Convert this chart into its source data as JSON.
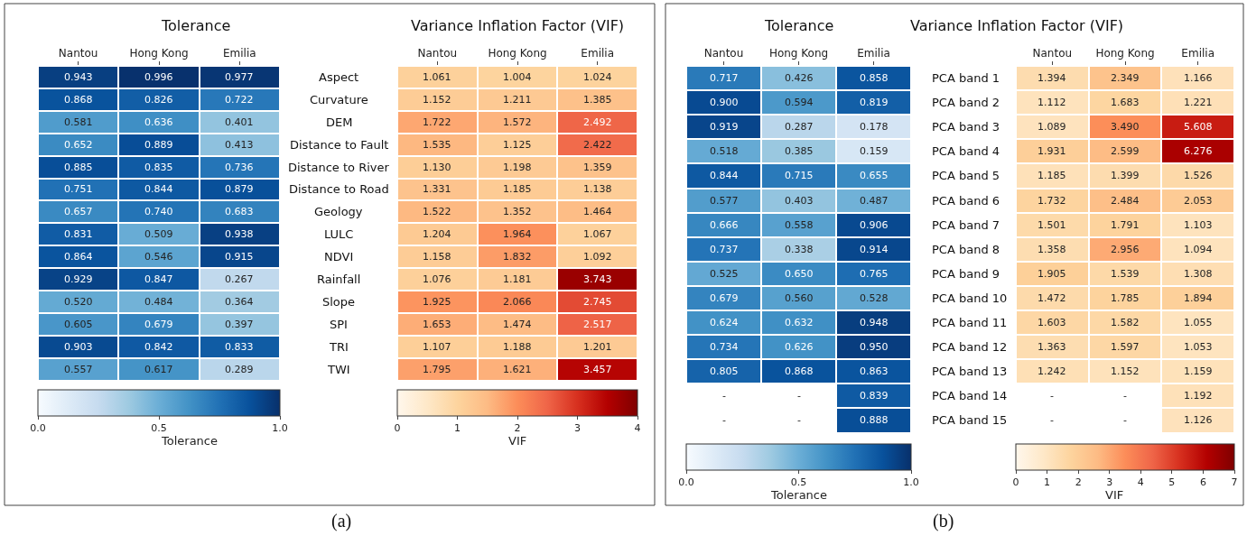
{
  "chart_data": [
    {
      "type": "heatmap",
      "title": "Tolerance",
      "clabel": "Tolerance",
      "categories": [
        "Nantou",
        "Hong Kong",
        "Emilia"
      ],
      "y_categories": [
        null,
        null,
        null,
        null,
        null,
        null,
        null,
        null,
        null,
        null,
        null,
        null,
        null,
        null
      ],
      "cells": [
        [
          0.943,
          0.996,
          0.977
        ],
        [
          0.868,
          0.826,
          0.722
        ],
        [
          0.581,
          0.636,
          0.401
        ],
        [
          0.652,
          0.889,
          0.413
        ],
        [
          0.885,
          0.835,
          0.736
        ],
        [
          0.751,
          0.844,
          0.879
        ],
        [
          0.657,
          0.74,
          0.683
        ],
        [
          0.831,
          0.509,
          0.938
        ],
        [
          0.864,
          0.546,
          0.915
        ],
        [
          0.929,
          0.847,
          0.267
        ],
        [
          0.52,
          0.484,
          0.364
        ],
        [
          0.605,
          0.679,
          0.397
        ],
        [
          0.903,
          0.842,
          0.833
        ],
        [
          0.557,
          0.617,
          0.289
        ]
      ],
      "cell_labels": [
        [
          "0.943",
          "0.996",
          "0.977"
        ],
        [
          "0.868",
          "0.826",
          "0.722"
        ],
        [
          "0.581",
          "0.636",
          "0.401"
        ],
        [
          "0.652",
          "0.889",
          "0.413"
        ],
        [
          "0.885",
          "0.835",
          "0.736"
        ],
        [
          "0.751",
          "0.844",
          "0.879"
        ],
        [
          "0.657",
          "0.740",
          "0.683"
        ],
        [
          "0.831",
          "0.509",
          "0.938"
        ],
        [
          "0.864",
          "0.546",
          "0.915"
        ],
        [
          "0.929",
          "0.847",
          "0.267"
        ],
        [
          "0.520",
          "0.484",
          "0.364"
        ],
        [
          "0.605",
          "0.679",
          "0.397"
        ],
        [
          "0.903",
          "0.842",
          "0.833"
        ],
        [
          "0.557",
          "0.617",
          "0.289"
        ]
      ],
      "clim": [
        0,
        1
      ],
      "cticks": [
        {
          "value": 0,
          "label": "0.0"
        },
        {
          "value": 0.5,
          "label": "0.5"
        },
        {
          "value": 1,
          "label": "1.0"
        }
      ],
      "tick_labels": "x",
      "annotations": [
        "(a)"
      ]
    },
    {
      "type": "heatmap",
      "title": "Variance Inflation Factor (VIF)",
      "clabel": "VIF",
      "categories": [
        "Nantou",
        "Hong Kong",
        "Emilia"
      ],
      "y_categories": [
        "Aspect",
        "Curvature",
        "DEM",
        "Distance to Fault",
        "Distance to River",
        "Distance to Road",
        "Geology",
        "LULC",
        "NDVI",
        "Rainfall",
        "Slope",
        "SPI",
        "TRI",
        "TWI"
      ],
      "cells": [
        [
          1.061,
          1.004,
          1.024
        ],
        [
          1.152,
          1.211,
          1.385
        ],
        [
          1.722,
          1.572,
          2.492
        ],
        [
          1.535,
          1.125,
          2.422
        ],
        [
          1.13,
          1.198,
          1.359
        ],
        [
          1.331,
          1.185,
          1.138
        ],
        [
          1.522,
          1.352,
          1.464
        ],
        [
          1.204,
          1.964,
          1.067
        ],
        [
          1.158,
          1.832,
          1.092
        ],
        [
          1.076,
          1.181,
          3.743
        ],
        [
          1.925,
          2.066,
          2.745
        ],
        [
          1.653,
          1.474,
          2.517
        ],
        [
          1.107,
          1.188,
          1.201
        ],
        [
          1.795,
          1.621,
          3.457
        ]
      ],
      "cell_labels": [
        [
          "1.061",
          "1.004",
          "1.024"
        ],
        [
          "1.152",
          "1.211",
          "1.385"
        ],
        [
          "1.722",
          "1.572",
          "2.492"
        ],
        [
          "1.535",
          "1.125",
          "2.422"
        ],
        [
          "1.130",
          "1.198",
          "1.359"
        ],
        [
          "1.331",
          "1.185",
          "1.138"
        ],
        [
          "1.522",
          "1.352",
          "1.464"
        ],
        [
          "1.204",
          "1.964",
          "1.067"
        ],
        [
          "1.158",
          "1.832",
          "1.092"
        ],
        [
          "1.076",
          "1.181",
          "3.743"
        ],
        [
          "1.925",
          "2.066",
          "2.745"
        ],
        [
          "1.653",
          "1.474",
          "2.517"
        ],
        [
          "1.107",
          "1.188",
          "1.201"
        ],
        [
          "1.795",
          "1.621",
          "3.457"
        ]
      ],
      "clim": [
        0,
        4
      ],
      "cticks": [
        0,
        1,
        2,
        3,
        4
      ]
    },
    {
      "type": "heatmap",
      "title": "Tolerance",
      "clabel": "Tolerance",
      "categories": [
        "Nantou",
        "Hong Kong",
        "Emilia"
      ],
      "y_categories": [
        null,
        null,
        null,
        null,
        null,
        null,
        null,
        null,
        null,
        null,
        null,
        null,
        null,
        null,
        null
      ],
      "cells": [
        [
          0.717,
          0.426,
          0.858
        ],
        [
          0.9,
          0.594,
          0.819
        ],
        [
          0.919,
          0.287,
          0.178
        ],
        [
          0.518,
          0.385,
          0.159
        ],
        [
          0.844,
          0.715,
          0.655
        ],
        [
          0.577,
          0.403,
          0.487
        ],
        [
          0.666,
          0.558,
          0.906
        ],
        [
          0.737,
          0.338,
          0.914
        ],
        [
          0.525,
          0.65,
          0.765
        ],
        [
          0.679,
          0.56,
          0.528
        ],
        [
          0.624,
          0.632,
          0.948
        ],
        [
          0.734,
          0.626,
          0.95
        ],
        [
          0.805,
          0.868,
          0.863
        ],
        [
          null,
          null,
          0.839
        ],
        [
          null,
          null,
          0.888
        ]
      ],
      "cell_labels": [
        [
          "0.717",
          "0.426",
          "0.858"
        ],
        [
          "0.900",
          "0.594",
          "0.819"
        ],
        [
          "0.919",
          "0.287",
          "0.178"
        ],
        [
          "0.518",
          "0.385",
          "0.159"
        ],
        [
          "0.844",
          "0.715",
          "0.655"
        ],
        [
          "0.577",
          "0.403",
          "0.487"
        ],
        [
          "0.666",
          "0.558",
          "0.906"
        ],
        [
          "0.737",
          "0.338",
          "0.914"
        ],
        [
          "0.525",
          "0.650",
          "0.765"
        ],
        [
          "0.679",
          "0.560",
          "0.528"
        ],
        [
          "0.624",
          "0.632",
          "0.948"
        ],
        [
          "0.734",
          "0.626",
          "0.950"
        ],
        [
          "0.805",
          "0.868",
          "0.863"
        ],
        [
          "-",
          "-",
          "0.839"
        ],
        [
          "-",
          "-",
          "0.888"
        ]
      ],
      "clim": [
        0,
        1
      ],
      "cticks": [
        {
          "value": 0,
          "label": "0.0"
        },
        {
          "value": 0.5,
          "label": "0.5"
        },
        {
          "value": 1,
          "label": "1.0"
        }
      ],
      "tick_labels": "x",
      "annotations": [
        "(b)"
      ]
    },
    {
      "type": "heatmap",
      "title": "Variance Inflation Factor (VIF)",
      "clabel": "VIF",
      "categories": [
        "Nantou",
        "Hong Kong",
        "Emilia"
      ],
      "y_categories": [
        "PCA band 1",
        "PCA band 2",
        "PCA band 3",
        "PCA band 4",
        "PCA band 5",
        "PCA band 6",
        "PCA band 7",
        "PCA band 8",
        "PCA band 9",
        "PCA band 10",
        "PCA band 11",
        "PCA band 12",
        "PCA band 13",
        "PCA band 14",
        "PCA band 15"
      ],
      "cells": [
        [
          1.394,
          2.349,
          1.166
        ],
        [
          1.112,
          1.683,
          1.221
        ],
        [
          1.089,
          3.49,
          5.608
        ],
        [
          1.931,
          2.599,
          6.276
        ],
        [
          1.185,
          1.399,
          1.526
        ],
        [
          1.732,
          2.484,
          2.053
        ],
        [
          1.501,
          1.791,
          1.103
        ],
        [
          1.358,
          2.956,
          1.094
        ],
        [
          1.905,
          1.539,
          1.308
        ],
        [
          1.472,
          1.785,
          1.894
        ],
        [
          1.603,
          1.582,
          1.055
        ],
        [
          1.363,
          1.597,
          1.053
        ],
        [
          1.242,
          1.152,
          1.159
        ],
        [
          null,
          null,
          1.192
        ],
        [
          null,
          null,
          1.126
        ]
      ],
      "cell_labels": [
        [
          "1.394",
          "2.349",
          "1.166"
        ],
        [
          "1.112",
          "1.683",
          "1.221"
        ],
        [
          "1.089",
          "3.490",
          "5.608"
        ],
        [
          "1.931",
          "2.599",
          "6.276"
        ],
        [
          "1.185",
          "1.399",
          "1.526"
        ],
        [
          "1.732",
          "2.484",
          "2.053"
        ],
        [
          "1.501",
          "1.791",
          "1.103"
        ],
        [
          "1.358",
          "2.956",
          "1.094"
        ],
        [
          "1.905",
          "1.539",
          "1.308"
        ],
        [
          "1.472",
          "1.785",
          "1.894"
        ],
        [
          "1.603",
          "1.582",
          "1.055"
        ],
        [
          "1.363",
          "1.597",
          "1.053"
        ],
        [
          "1.242",
          "1.152",
          "1.159"
        ],
        [
          "-",
          "-",
          "1.192"
        ],
        [
          "-",
          "-",
          "1.126"
        ]
      ],
      "clim": [
        0,
        7
      ],
      "cticks": [
        0,
        1,
        2,
        3,
        4,
        5,
        6,
        7
      ]
    }
  ]
}
